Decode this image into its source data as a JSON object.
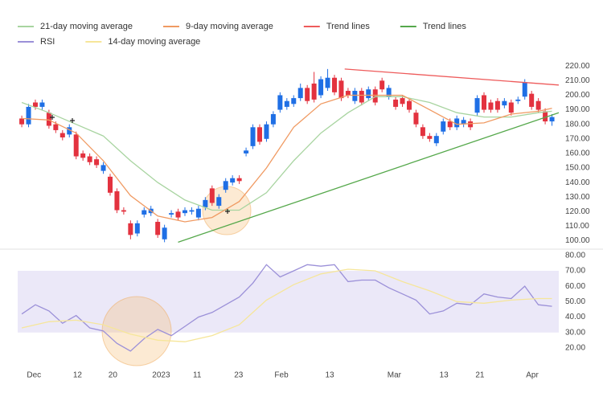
{
  "chart_data": [
    {
      "type": "candlestick",
      "x": [
        0,
        1,
        2,
        3,
        4,
        5,
        6,
        7,
        8,
        9,
        10,
        11,
        12,
        13,
        14,
        15,
        16,
        17,
        18,
        19,
        20,
        21,
        22,
        23,
        24,
        25,
        26,
        27,
        28,
        29,
        30,
        31,
        32,
        33,
        34,
        35,
        36,
        37,
        38,
        39,
        40,
        41,
        42,
        43,
        44,
        45,
        46,
        47,
        48,
        49,
        50,
        51,
        52,
        53,
        54,
        55,
        56,
        57,
        58,
        59,
        60,
        61,
        62,
        63,
        64,
        65,
        66,
        67,
        68,
        69,
        70,
        71,
        72,
        73,
        74,
        75,
        76,
        77,
        78
      ],
      "open": [
        184,
        180,
        195,
        192,
        188,
        180,
        174,
        173,
        173,
        160,
        158,
        156,
        148,
        144,
        134,
        121,
        112,
        105,
        118,
        119,
        113,
        101,
        118,
        120,
        119,
        120,
        116,
        123,
        136,
        124,
        135,
        140,
        143,
        160,
        165,
        178,
        170,
        180,
        190,
        192,
        194,
        198,
        205,
        208,
        200,
        205,
        212,
        210,
        203,
        196,
        203,
        198,
        204,
        210,
        199,
        197,
        198,
        196,
        188,
        178,
        172,
        167,
        175,
        182,
        178,
        180,
        182,
        188,
        200,
        195,
        196,
        193,
        195,
        196,
        199,
        201,
        196,
        189,
        182
      ],
      "high": [
        186,
        194,
        197,
        197,
        190,
        182,
        176,
        180,
        175,
        162,
        160,
        158,
        154,
        146,
        136,
        123,
        114,
        114,
        123,
        124,
        115,
        111,
        121,
        122,
        123,
        123,
        124,
        130,
        138,
        132,
        143,
        145,
        145,
        164,
        180,
        180,
        182,
        189,
        202,
        198,
        200,
        208,
        207,
        216,
        213,
        218,
        214,
        212,
        205,
        205,
        205,
        206,
        206,
        212,
        207,
        199,
        200,
        198,
        190,
        180,
        174,
        174,
        184,
        184,
        186,
        185,
        184,
        200,
        202,
        197,
        198,
        198,
        197,
        199,
        211,
        203,
        198,
        191,
        187
      ],
      "low": [
        178,
        178,
        190,
        190,
        177,
        174,
        169,
        171,
        156,
        155,
        152,
        150,
        146,
        131,
        119,
        118,
        101,
        103,
        116,
        117,
        102,
        99,
        116,
        114,
        117,
        118,
        114,
        121,
        124,
        122,
        133,
        138,
        139,
        158,
        163,
        166,
        168,
        178,
        188,
        190,
        192,
        196,
        194,
        195,
        198,
        203,
        200,
        196,
        198,
        194,
        193,
        196,
        193,
        202,
        197,
        190,
        192,
        188,
        178,
        170,
        168,
        165,
        173,
        176,
        176,
        178,
        176,
        186,
        188,
        188,
        188,
        191,
        186,
        194,
        197,
        190,
        188,
        180,
        179
      ],
      "close": [
        180,
        192,
        192,
        195,
        179,
        176,
        171,
        178,
        158,
        157,
        154,
        152,
        152,
        133,
        121,
        120,
        104,
        112,
        121,
        122,
        104,
        109,
        119,
        116,
        121,
        121,
        122,
        128,
        126,
        130,
        141,
        143,
        141,
        162,
        178,
        168,
        180,
        187,
        200,
        196,
        198,
        205,
        196,
        197,
        211,
        212,
        202,
        198,
        200,
        203,
        195,
        204,
        195,
        204,
        205,
        192,
        194,
        190,
        180,
        172,
        170,
        172,
        182,
        178,
        184,
        183,
        178,
        198,
        190,
        190,
        190,
        196,
        188,
        197,
        209,
        192,
        190,
        182,
        185
      ],
      "up_color": "#1f6fe5",
      "down_color": "#e3323f",
      "xlim": [
        -0.6,
        79
      ],
      "ylim": [
        97,
        224
      ],
      "yticks": [
        {
          "value": 100,
          "label": "100.00"
        },
        {
          "value": 110,
          "label": "110.00"
        },
        {
          "value": 120,
          "label": "120.00"
        },
        {
          "value": 130,
          "label": "130.00"
        },
        {
          "value": 140,
          "label": "140.00"
        },
        {
          "value": 150,
          "label": "150.00"
        },
        {
          "value": 160,
          "label": "160.00"
        },
        {
          "value": 170,
          "label": "170.00"
        },
        {
          "value": 180,
          "label": "180.00"
        },
        {
          "value": 190,
          "label": "190.00"
        },
        {
          "value": 200,
          "label": "200.00"
        },
        {
          "value": 210,
          "label": "210.00"
        },
        {
          "value": 220,
          "label": "220.00"
        }
      ],
      "series": [
        {
          "name": "21-day moving average",
          "color": "#a8d4a0",
          "x": [
            0,
            4,
            8,
            12,
            16,
            20,
            24,
            28,
            32,
            36,
            40,
            44,
            48,
            52,
            56,
            60,
            64,
            68,
            72,
            76,
            78
          ],
          "values": [
            195,
            188,
            180,
            172,
            155,
            140,
            128,
            121,
            121,
            133,
            155,
            174,
            188,
            199,
            199,
            195,
            188,
            185,
            185,
            188,
            189
          ]
        },
        {
          "name": "9-day moving average",
          "color": "#f09a62",
          "x": [
            0,
            4,
            8,
            12,
            16,
            20,
            24,
            28,
            32,
            36,
            40,
            44,
            48,
            52,
            56,
            60,
            64,
            68,
            72,
            76,
            78
          ],
          "values": [
            184,
            183,
            174,
            155,
            131,
            117,
            113,
            116,
            127,
            150,
            178,
            194,
            200,
            200,
            200,
            190,
            180,
            181,
            187,
            189,
            191
          ]
        },
        {
          "name": "Trend lines",
          "color": "#ee5b5b",
          "x": [
            47.5,
            79
          ],
          "values": [
            218,
            207
          ]
        },
        {
          "name": "Trend lines",
          "color": "#55a84b",
          "x": [
            23,
            79
          ],
          "values": [
            99,
            188
          ]
        }
      ]
    },
    {
      "type": "line",
      "xlim": [
        -0.6,
        79
      ],
      "ylim": [
        8.5,
        83
      ],
      "yticks": [
        {
          "value": 20,
          "label": "20.00"
        },
        {
          "value": 30,
          "label": "30.00"
        },
        {
          "value": 40,
          "label": "40.00"
        },
        {
          "value": 50,
          "label": "50.00"
        },
        {
          "value": 60,
          "label": "60.00"
        },
        {
          "value": 70,
          "label": "70.00"
        },
        {
          "value": 80,
          "label": "80.00"
        }
      ],
      "xticks": [
        {
          "value": 1.8,
          "label": "Dec"
        },
        {
          "value": 8.2,
          "label": "12"
        },
        {
          "value": 13.4,
          "label": "20"
        },
        {
          "value": 20.5,
          "label": "2023"
        },
        {
          "value": 25.8,
          "label": "11"
        },
        {
          "value": 31.9,
          "label": "23"
        },
        {
          "value": 38.2,
          "label": "Feb"
        },
        {
          "value": 45.3,
          "label": "13"
        },
        {
          "value": 54.8,
          "label": "Mar"
        },
        {
          "value": 62.1,
          "label": "13"
        },
        {
          "value": 67.4,
          "label": "21"
        },
        {
          "value": 75.1,
          "label": "Apr"
        }
      ],
      "band": [
        30,
        70
      ],
      "band_color": "#ebe8f8",
      "series": [
        {
          "name": "RSI",
          "color": "#9b90d8",
          "x": [
            0,
            2,
            4,
            6,
            8,
            10,
            12,
            14,
            16,
            18,
            20,
            22,
            24,
            26,
            28,
            30,
            32,
            34,
            36,
            38,
            40,
            42,
            44,
            46,
            48,
            50,
            52,
            54,
            56,
            58,
            60,
            62,
            64,
            66,
            68,
            70,
            72,
            74,
            76,
            78
          ],
          "values": [
            42,
            48,
            44,
            36,
            41,
            33,
            31,
            23,
            18,
            26,
            32,
            28,
            34,
            40,
            43,
            48,
            53,
            62,
            74,
            66,
            70,
            74,
            73,
            74,
            63,
            64,
            64,
            59,
            55,
            51,
            42,
            44,
            49,
            48,
            55,
            53,
            52,
            60,
            48,
            47
          ]
        },
        {
          "name": "14-day moving average",
          "color": "#f6e69a",
          "x": [
            0,
            4,
            8,
            12,
            16,
            20,
            24,
            28,
            32,
            36,
            40,
            44,
            48,
            52,
            56,
            60,
            64,
            68,
            72,
            76,
            78
          ],
          "values": [
            33,
            37,
            38,
            35,
            29,
            25,
            24,
            28,
            35,
            51,
            61,
            68,
            71,
            70,
            63,
            57,
            50,
            49,
            51,
            52,
            52
          ]
        }
      ]
    }
  ]
}
